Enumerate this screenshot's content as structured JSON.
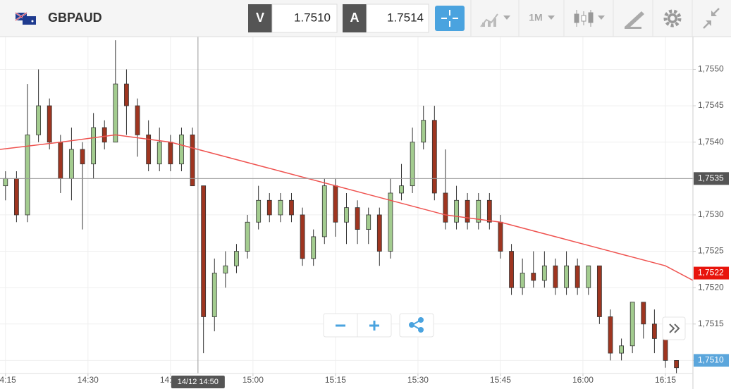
{
  "toolbar": {
    "symbol": "GBPAUD",
    "bid_label": "V",
    "bid": "1.7510",
    "ask_label": "A",
    "ask": "1.7514",
    "timeframe": "1M"
  },
  "chart_data": {
    "type": "candlestick",
    "x": [
      "14:15",
      "14:17",
      "14:19",
      "14:21",
      "14:23",
      "14:25",
      "14:27",
      "14:29",
      "14:31",
      "14:33",
      "14:35",
      "14:37",
      "14:39",
      "14:41",
      "14:43",
      "14:45",
      "14:47",
      "14:49",
      "14:51",
      "14:53",
      "14:55",
      "14:57",
      "14:59",
      "15:01",
      "15:03",
      "15:05",
      "15:07",
      "15:09",
      "15:11",
      "15:13",
      "15:15",
      "15:17",
      "15:19",
      "15:21",
      "15:23",
      "15:25",
      "15:27",
      "15:29",
      "15:31",
      "15:33",
      "15:35",
      "15:37",
      "15:39",
      "15:41",
      "15:43",
      "15:45",
      "15:47",
      "15:49",
      "15:51",
      "15:53",
      "15:55",
      "15:57",
      "15:59",
      "16:01",
      "16:03",
      "16:05",
      "16:07",
      "16:09",
      "16:11",
      "16:13",
      "16:15",
      "16:17"
    ],
    "open": [
      1.7534,
      1.7535,
      1.753,
      1.7541,
      1.7545,
      1.754,
      1.7535,
      1.7539,
      1.7537,
      1.7542,
      1.754,
      1.7548,
      1.7545,
      1.7541,
      1.7537,
      1.754,
      1.7537,
      1.7541,
      1.7534,
      1.7516,
      1.7522,
      1.7523,
      1.7525,
      1.7529,
      1.7532,
      1.753,
      1.7532,
      1.753,
      1.7524,
      1.7527,
      1.7534,
      1.7529,
      1.7531,
      1.7528,
      1.753,
      1.7525,
      1.7533,
      1.7534,
      1.754,
      1.7543,
      1.7533,
      1.7529,
      1.7532,
      1.7529,
      1.7532,
      1.7529,
      1.7525,
      1.752,
      1.7522,
      1.7521,
      1.7523,
      1.752,
      1.7523,
      1.752,
      1.7523,
      1.7516,
      1.7511,
      1.7512,
      1.7518,
      1.7515,
      1.7513,
      1.751
    ],
    "high": [
      1.7536,
      1.7536,
      1.7548,
      1.755,
      1.7546,
      1.7541,
      1.7542,
      1.754,
      1.7544,
      1.7543,
      1.7554,
      1.755,
      1.7546,
      1.7543,
      1.7542,
      1.7541,
      1.7542,
      1.7542,
      1.7534,
      1.7524,
      1.7525,
      1.7526,
      1.753,
      1.7534,
      1.7533,
      1.7533,
      1.7533,
      1.7531,
      1.7528,
      1.7535,
      1.7535,
      1.7533,
      1.7532,
      1.7531,
      1.7531,
      1.7535,
      1.7537,
      1.7542,
      1.7545,
      1.7545,
      1.7539,
      1.7534,
      1.7533,
      1.7533,
      1.7533,
      1.753,
      1.7526,
      1.7524,
      1.7525,
      1.7525,
      1.7524,
      1.7525,
      1.7524,
      1.7523,
      1.7523,
      1.7517,
      1.7513,
      1.7518,
      1.7518,
      1.7517,
      1.7513,
      1.751
    ],
    "low": [
      1.7532,
      1.7529,
      1.7529,
      1.754,
      1.7539,
      1.7533,
      1.7532,
      1.7528,
      1.7535,
      1.7539,
      1.754,
      1.7541,
      1.7538,
      1.7536,
      1.7536,
      1.7536,
      1.7536,
      1.7534,
      1.7511,
      1.7514,
      1.752,
      1.7522,
      1.7524,
      1.7528,
      1.7529,
      1.7529,
      1.7529,
      1.7523,
      1.7523,
      1.7526,
      1.7527,
      1.7526,
      1.7526,
      1.7526,
      1.7523,
      1.7524,
      1.7532,
      1.7533,
      1.7539,
      1.7532,
      1.7528,
      1.7528,
      1.7528,
      1.7528,
      1.7528,
      1.7524,
      1.7519,
      1.7519,
      1.752,
      1.752,
      1.7519,
      1.7519,
      1.7519,
      1.7519,
      1.7515,
      1.751,
      1.751,
      1.7511,
      1.7513,
      1.7511,
      1.7509,
      1.7508
    ],
    "close": [
      1.7535,
      1.753,
      1.7541,
      1.7545,
      1.754,
      1.7535,
      1.7539,
      1.7537,
      1.7542,
      1.754,
      1.7548,
      1.7545,
      1.7541,
      1.7537,
      1.754,
      1.7537,
      1.7541,
      1.7534,
      1.7516,
      1.7522,
      1.7523,
      1.7525,
      1.7529,
      1.7532,
      1.753,
      1.7532,
      1.753,
      1.7524,
      1.7527,
      1.7534,
      1.7529,
      1.7531,
      1.7528,
      1.753,
      1.7525,
      1.7533,
      1.7534,
      1.754,
      1.7543,
      1.7533,
      1.7529,
      1.7532,
      1.7529,
      1.7532,
      1.7529,
      1.7525,
      1.752,
      1.7522,
      1.7521,
      1.7523,
      1.752,
      1.7523,
      1.752,
      1.7523,
      1.7516,
      1.7511,
      1.7512,
      1.7518,
      1.7515,
      1.7513,
      1.751,
      1.7509
    ],
    "up_color": "#a3cc8f",
    "down_color": "#9e3520",
    "ma": {
      "color": "#ef5350",
      "x": [
        "14:14",
        "14:25",
        "14:35",
        "14:45",
        "14:55",
        "15:05",
        "15:15",
        "15:25",
        "15:35",
        "15:45",
        "15:55",
        "16:05",
        "16:15",
        "16:20"
      ],
      "values": [
        1.7539,
        1.754,
        1.7541,
        1.754,
        1.7538,
        1.7536,
        1.7534,
        1.7532,
        1.753,
        1.7529,
        1.7527,
        1.7525,
        1.7523,
        1.7521
      ]
    },
    "xlim": [
      "14:14",
      "16:20"
    ],
    "xticks": [
      "14:15",
      "14:30",
      "14:45",
      "15:00",
      "15:15",
      "15:30",
      "15:45",
      "16:00",
      "16:15"
    ],
    "ylim": [
      1.75082,
      1.75545
    ],
    "yticks": [
      {
        "value": 1.751,
        "label": "1,7510"
      },
      {
        "value": 1.7515,
        "label": "1,7515"
      },
      {
        "value": 1.752,
        "label": "1,7520"
      },
      {
        "value": 1.7525,
        "label": "1,7525"
      },
      {
        "value": 1.753,
        "label": "1,7530"
      },
      {
        "value": 1.7535,
        "label": "1,7535"
      },
      {
        "value": 1.754,
        "label": "1,7540"
      },
      {
        "value": 1.7545,
        "label": "1,7545"
      },
      {
        "value": 1.755,
        "label": "1,7550"
      }
    ],
    "grid": true,
    "crosshair": {
      "x": "14:50",
      "x_label": "14/12 14:50",
      "y": 1.7535,
      "y_label": "1,7535"
    },
    "price_labels": [
      {
        "value": 1.7522,
        "label": "1,7522",
        "color": "#e8140c"
      },
      {
        "value": 1.751,
        "label": "1,7510",
        "color": "#5ba6dc"
      }
    ]
  }
}
